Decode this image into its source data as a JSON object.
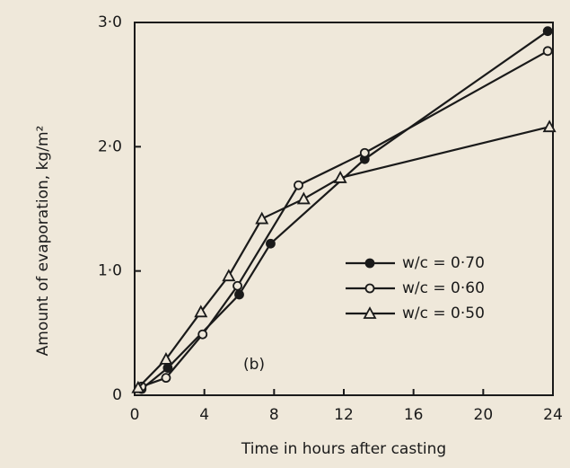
{
  "chart_data": {
    "type": "line",
    "xlabel": "Time in hours after casting",
    "ylabel": "Amount of evaporation, kg/m²",
    "annotation": "(b)",
    "xlim": [
      0,
      24
    ],
    "xticks": [
      0,
      4,
      8,
      12,
      16,
      20,
      24
    ],
    "ylim": [
      0,
      3
    ],
    "yticks": [
      0,
      {
        "value": 1,
        "label": "1·0"
      },
      {
        "value": 2,
        "label": "2·0"
      },
      {
        "value": 3,
        "label": "3·0"
      }
    ],
    "legend": "right",
    "series": [
      {
        "name": "w/c = 0·70",
        "color": "#1a1a1a",
        "marker": "filled-circle",
        "x": [
          0.4,
          1.9,
          6,
          7.8,
          13.2,
          23.7
        ],
        "values": [
          0.05,
          0.22,
          0.81,
          1.22,
          1.9,
          2.93
        ]
      },
      {
        "name": "w/c = 0·60",
        "color": "#1a1a1a",
        "marker": "open-circle",
        "x": [
          0.4,
          1.8,
          3.9,
          5.9,
          9.4,
          13.2,
          23.7
        ],
        "values": [
          0.07,
          0.14,
          0.49,
          0.88,
          1.69,
          1.95,
          2.77
        ]
      },
      {
        "name": "w/c = 0·50",
        "color": "#1a1a1a",
        "marker": "open-triangle",
        "x": [
          0.2,
          1.8,
          3.8,
          5.4,
          7.3,
          9.7,
          11.8,
          23.8
        ],
        "values": [
          0.06,
          0.29,
          0.67,
          0.96,
          1.42,
          1.58,
          1.75,
          2.16
        ]
      }
    ]
  }
}
